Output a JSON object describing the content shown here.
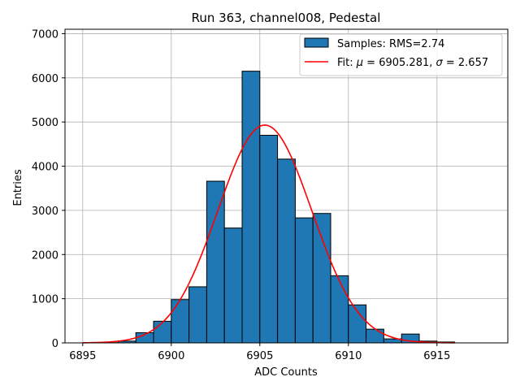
{
  "chart_data": {
    "type": "bar",
    "title": "Run 363, channel008, Pedestal",
    "xlabel": "ADC Counts",
    "ylabel": "Entries",
    "xlim": [
      6894,
      6919
    ],
    "ylim": [
      0,
      7100
    ],
    "grid": true,
    "legend_position": "top-right",
    "x_ticks": [
      6895,
      6900,
      6905,
      6910,
      6915
    ],
    "y_ticks": [
      0,
      1000,
      2000,
      3000,
      4000,
      5000,
      6000,
      7000
    ],
    "bin_width": 1,
    "bins": [
      {
        "x": 6895,
        "count": 0
      },
      {
        "x": 6896,
        "count": 5
      },
      {
        "x": 6897,
        "count": 40
      },
      {
        "x": 6898,
        "count": 230
      },
      {
        "x": 6899,
        "count": 490
      },
      {
        "x": 6900,
        "count": 980
      },
      {
        "x": 6901,
        "count": 1270
      },
      {
        "x": 6902,
        "count": 3660
      },
      {
        "x": 6903,
        "count": 2600
      },
      {
        "x": 6904,
        "count": 6150
      },
      {
        "x": 6905,
        "count": 4700
      },
      {
        "x": 6906,
        "count": 4160
      },
      {
        "x": 6907,
        "count": 2830
      },
      {
        "x": 6908,
        "count": 2930
      },
      {
        "x": 6909,
        "count": 1520
      },
      {
        "x": 6910,
        "count": 860
      },
      {
        "x": 6911,
        "count": 310
      },
      {
        "x": 6912,
        "count": 90
      },
      {
        "x": 6913,
        "count": 200
      },
      {
        "x": 6914,
        "count": 40
      },
      {
        "x": 6915,
        "count": 20
      }
    ],
    "fit": {
      "mu": 6905.281,
      "sigma": 2.657,
      "amplitude": 4930,
      "x_range": [
        6895,
        6916
      ]
    },
    "legend": {
      "samples": "Samples: RMS=2.74",
      "fit_prefix": "Fit: ",
      "mu_symbol": "μ",
      "mu_text": " = 6905.281, ",
      "sigma_symbol": "σ",
      "sigma_text": " = 2.657"
    },
    "colors": {
      "bar_fill": "#1f77b4",
      "bar_edge": "#000000",
      "fit_line": "#ff0000",
      "grid": "#b0b0b0"
    }
  }
}
